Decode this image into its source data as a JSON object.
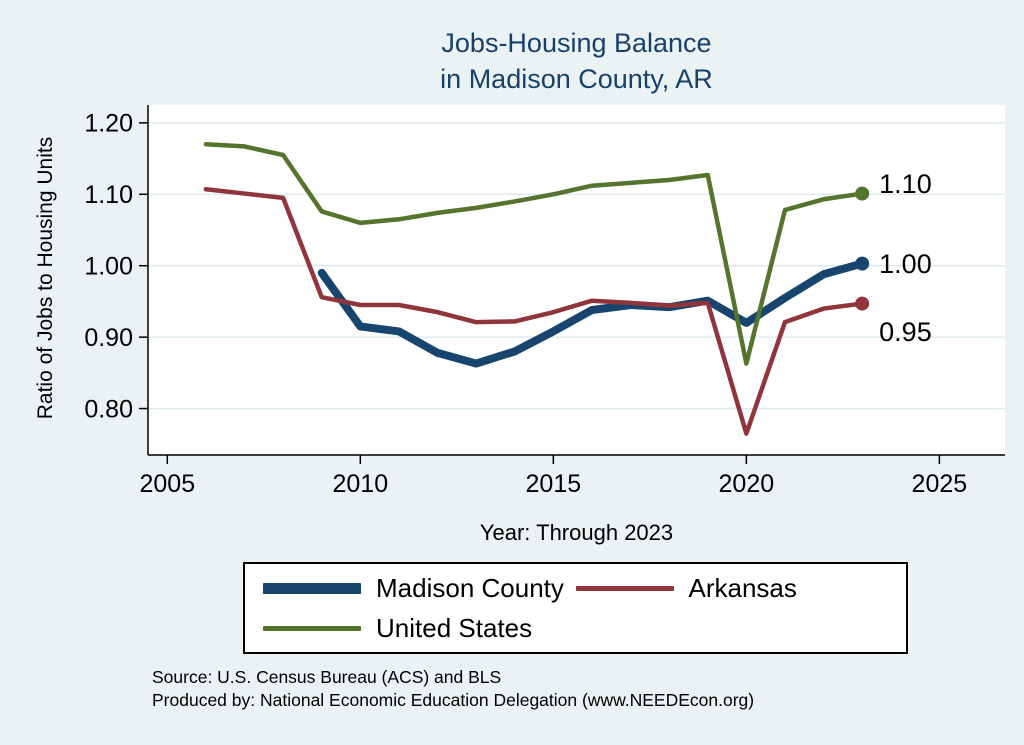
{
  "title": {
    "line1": "Jobs-Housing Balance",
    "line2": "in Madison County, AR"
  },
  "source": {
    "line1": "Source: U.S. Census Bureau (ACS) and BLS",
    "line2": "Produced by: National Economic Education Delegation (www.NEEDEcon.org)"
  },
  "colors": {
    "background": "#eaf2f3",
    "plot_background": "#ffffff",
    "title_text": "#17406a",
    "grid_line": "#dce9f0",
    "axis_line": "#000000"
  },
  "chart_data": {
    "type": "line",
    "title": "Jobs-Housing Balance in Madison County, AR",
    "xlabel": "Year: Through 2023",
    "ylabel": "Ratio of Jobs to Housing Units",
    "xlim": [
      2004.5,
      2026.7
    ],
    "ylim": [
      0.735,
      1.225
    ],
    "xticks": [
      2005,
      2010,
      2015,
      2020,
      2025
    ],
    "yticks": [
      0.8,
      0.9,
      1.0,
      1.1,
      1.2
    ],
    "grid": "horizontal",
    "legend_position": "bottom",
    "series": [
      {
        "name": "Madison County",
        "color": "#17456e",
        "width": 8,
        "end_label": "1.00",
        "label_dy": 0,
        "x": [
          2009,
          2010,
          2011,
          2012,
          2013,
          2014,
          2015,
          2016,
          2017,
          2018,
          2019,
          2020,
          2021,
          2022,
          2023
        ],
        "values": [
          0.99,
          0.915,
          0.908,
          0.878,
          0.863,
          0.88,
          0.908,
          0.938,
          0.945,
          0.942,
          0.951,
          0.92,
          0.955,
          0.988,
          1.003
        ]
      },
      {
        "name": "Arkansas",
        "color": "#90353b",
        "width": 4.5,
        "end_label": "0.95",
        "label_dy": 28,
        "x": [
          2006,
          2007,
          2008,
          2009,
          2010,
          2011,
          2012,
          2013,
          2014,
          2015,
          2016,
          2017,
          2018,
          2019,
          2020,
          2021,
          2022,
          2023
        ],
        "values": [
          1.107,
          1.101,
          1.095,
          0.956,
          0.945,
          0.945,
          0.935,
          0.921,
          0.922,
          0.935,
          0.951,
          0.948,
          0.944,
          0.948,
          0.765,
          0.921,
          0.94,
          0.947
        ]
      },
      {
        "name": "United States",
        "color": "#55752f",
        "width": 4.5,
        "end_label": "1.10",
        "label_dy": -10,
        "x": [
          2006,
          2007,
          2008,
          2009,
          2010,
          2011,
          2012,
          2013,
          2014,
          2015,
          2016,
          2017,
          2018,
          2019,
          2020,
          2021,
          2022,
          2023
        ],
        "values": [
          1.17,
          1.167,
          1.155,
          1.076,
          1.06,
          1.065,
          1.074,
          1.081,
          1.09,
          1.1,
          1.112,
          1.116,
          1.12,
          1.127,
          0.863,
          1.078,
          1.093,
          1.101
        ]
      }
    ]
  }
}
